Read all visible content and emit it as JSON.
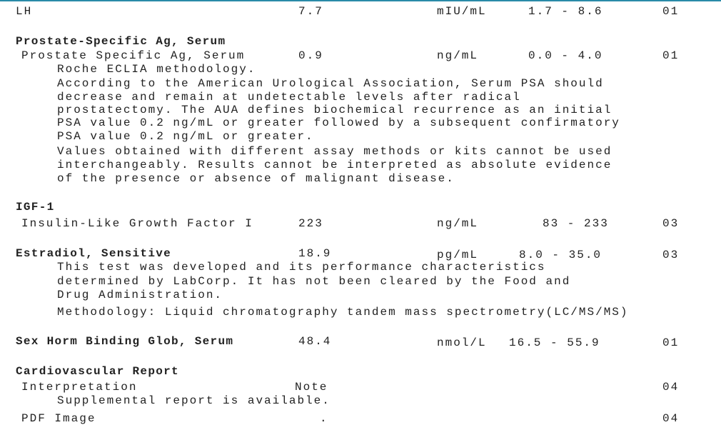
{
  "accent_color": "#2a8aa8",
  "rows": {
    "lh": {
      "name": "LH",
      "value": "7.7",
      "unit": "mIU/mL",
      "range": "1.7 - 8.6",
      "code": "01"
    },
    "psa_header": "Prostate-Specific Ag, Serum",
    "psa": {
      "name": "Prostate Specific Ag, Serum",
      "value": "0.9",
      "unit": "ng/mL",
      "range": "0.0 - 4.0",
      "code": "01",
      "comments": [
        "Roche ECLIA methodology.",
        "According to the American Urological Association, Serum PSA should",
        "decrease and remain at undetectable levels after radical",
        "prostatectomy. The AUA defines biochemical recurrence as an initial",
        "PSA value 0.2 ng/mL or greater followed by a subsequent confirmatory",
        "PSA value 0.2 ng/mL or greater.",
        "Values obtained with different assay methods or kits cannot be used",
        "interchangeably. Results cannot be interpreted as absolute evidence",
        "of the presence or absence of malignant disease."
      ]
    },
    "igf_header": "IGF-1",
    "igf": {
      "name": "Insulin-Like Growth Factor I",
      "value": "223",
      "unit": "ng/mL",
      "range": "83 - 233",
      "code": "03"
    },
    "estradiol": {
      "name": "Estradiol, Sensitive",
      "value": "18.9",
      "unit": "pg/mL",
      "range": "8.0 - 35.0",
      "code": "03",
      "comments": [
        "This test was developed and its performance characteristics",
        "determined by LabCorp. It has not been cleared by the Food and",
        "Drug Administration.",
        "Methodology: Liquid chromatography tandem mass spectrometry(LC/MS/MS)"
      ]
    },
    "shbg": {
      "name": "Sex Horm Binding Glob, Serum",
      "value": "48.4",
      "unit": "nmol/L",
      "range": "16.5 - 55.9",
      "code": "01"
    },
    "cv_header": "Cardiovascular Report",
    "interp": {
      "name": "Interpretation",
      "value": "Note",
      "code": "04",
      "comment": "Supplemental report is available."
    },
    "pdf": {
      "name": "PDF Image",
      "value": ".",
      "code": "04"
    }
  }
}
